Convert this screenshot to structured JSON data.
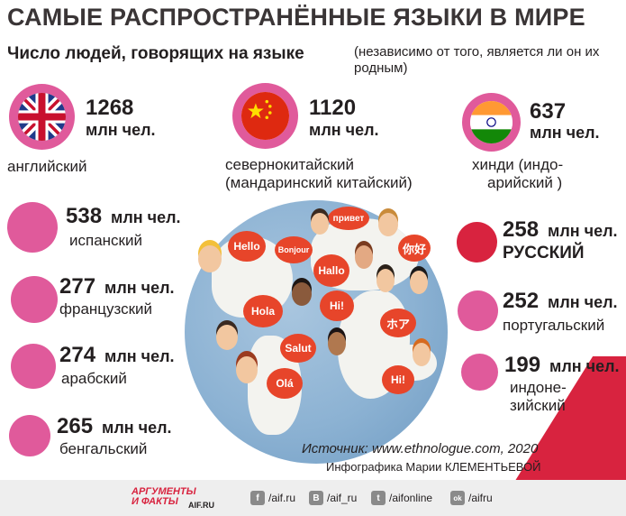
{
  "title": "САМЫЕ РАСПРОСТРАНЁННЫЕ ЯЗЫКИ В МИРЕ",
  "subtitle": "Число людей, говорящих на языке",
  "note": "(независимо от того, является ли он их родным)",
  "unit": "млн чел.",
  "accent_color": "#e05a9b",
  "russian_color": "#d8233f",
  "bubble_color": "#e7452a",
  "top_languages": [
    {
      "value": "1268",
      "unit": "млн чел.",
      "name": "английский",
      "flag": "uk-flag-icon"
    },
    {
      "value": "1120",
      "unit": "млн чел.",
      "name_line1": "севернокитайский",
      "name_line2": "(мандаринский китайский)",
      "flag": "china-flag-icon"
    },
    {
      "value": "637",
      "unit": "млн чел.",
      "name_line1": "хинди (индо-",
      "name_line2": "арийский )",
      "flag": "india-flag-icon"
    }
  ],
  "left_languages": [
    {
      "value": "538",
      "unit": "млн чел.",
      "name": "испанский"
    },
    {
      "value": "277",
      "unit": "млн чел.",
      "name": "французский"
    },
    {
      "value": "274",
      "unit": "млн чел.",
      "name": "арабский"
    },
    {
      "value": "265",
      "unit": "млн чел.",
      "name": "бенгальский"
    }
  ],
  "right_languages": [
    {
      "value": "258",
      "unit": "млн чел.",
      "name": "РУССКИЙ"
    },
    {
      "value": "252",
      "unit": "млн чел.",
      "name": "португальский"
    },
    {
      "value": "199",
      "unit": "млн чел.",
      "name_line1": "индоне-",
      "name_line2": "зийский"
    }
  ],
  "greetings": [
    "привет",
    "Hello",
    "Bonjour",
    "你好",
    "Hallo",
    "Hola",
    "Hi!",
    "ホア",
    "Salut",
    "Olá",
    "Hi!"
  ],
  "source": "Источник: www.ethnologue.com, 2020",
  "credit": "Инфографика Марии КЛЕМЕНТЬЕВОЙ",
  "footer": {
    "logo_line1": "АРГУМЕНТЫ",
    "logo_line2": "И ФАКТЫ",
    "logo_sub": "AIF.RU",
    "social": [
      {
        "icon": "f",
        "name": "facebook-icon",
        "label": "/aif.ru"
      },
      {
        "icon": "B",
        "name": "vk-icon",
        "label": "/aif_ru"
      },
      {
        "icon": "t",
        "name": "twitter-icon",
        "label": "/aifonline"
      },
      {
        "icon": "ok",
        "name": "odnoklassniki-icon",
        "label": "/aifru"
      }
    ]
  }
}
